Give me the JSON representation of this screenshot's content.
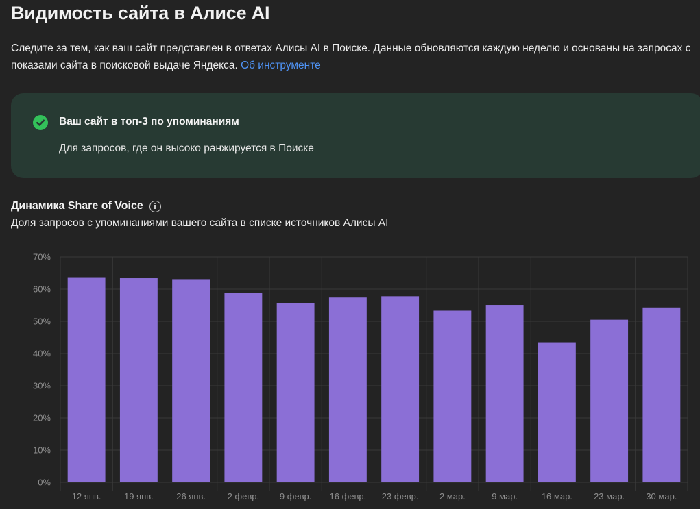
{
  "header": {
    "title": "Видимость сайта в Алисе AI",
    "description": "Следите за тем, как ваш сайт представлен в ответах Алисы AI в Поиске. Данные обновляются каждую неделю и основаны на запросах с показами сайта в поисковой выдаче Яндекса.",
    "about_link": "Об инструменте"
  },
  "status_card": {
    "icon": "check-circle-icon",
    "title": "Ваш сайт в топ-3 по упоминаниям",
    "subtitle": "Для запросов, где он высоко ранжируется в Поиске"
  },
  "chart_section": {
    "title": "Динамика Share of Voice",
    "info_icon": "info-icon",
    "subtitle": "Доля запросов с упоминаниями вашего сайта в списке источников Алисы AI"
  },
  "colors": {
    "background": "#232323",
    "card": "#273a33",
    "success": "#33c15a",
    "link": "#4f93f5",
    "bar": "#8b6fd6",
    "grid": "#3a3a3a"
  },
  "chart_data": {
    "type": "bar",
    "title": "Динамика Share of Voice",
    "categories": [
      "12 янв.",
      "19 янв.",
      "26 янв.",
      "2 февр.",
      "9 февр.",
      "16 февр.",
      "23 февр.",
      "2 мар.",
      "9 мар.",
      "16 мар.",
      "23 мар.",
      "30 мар."
    ],
    "values": [
      63.5,
      63.4,
      63.1,
      58.9,
      55.7,
      57.4,
      57.8,
      53.3,
      55.1,
      43.5,
      50.5,
      54.3
    ],
    "unit": "%",
    "ylim": [
      0,
      70
    ],
    "yticks": [
      "0%",
      "10%",
      "20%",
      "30%",
      "40%",
      "50%",
      "60%",
      "70%"
    ],
    "grid": true,
    "legend": "none"
  }
}
